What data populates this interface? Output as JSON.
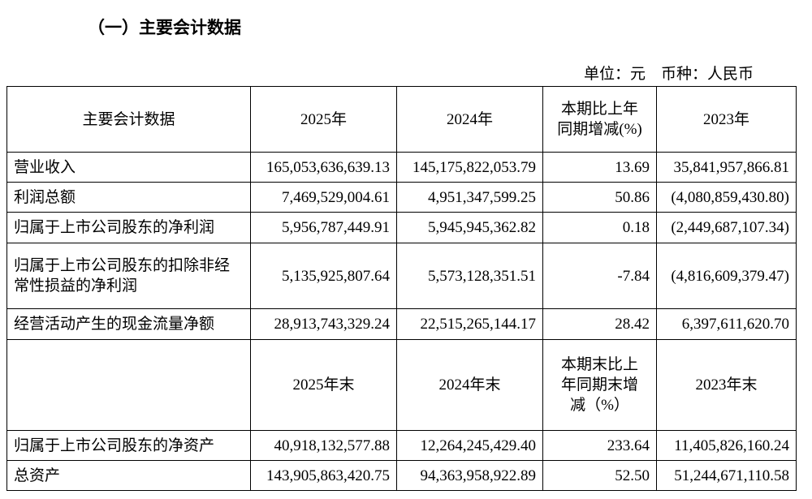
{
  "title": "（一）主要会计数据",
  "unit_note": "单位：元　币种：人民币",
  "table": {
    "header": [
      "主要会计数据",
      "2025年",
      "2024年",
      "本期比上年\n同期增减(%)",
      "2023年"
    ],
    "rows": [
      [
        "营业收入",
        "165,053,636,639.13",
        "145,175,822,053.79",
        "13.69",
        "35,841,957,866.81"
      ],
      [
        "利润总额",
        "7,469,529,004.61",
        "4,951,347,599.25",
        "50.86",
        "(4,080,859,430.80)"
      ],
      [
        "归属于上市公司股东的净利润",
        "5,956,787,449.91",
        "5,945,945,362.82",
        "0.18",
        "(2,449,687,107.34)"
      ],
      [
        "归属于上市公司股东的扣除非经常性损益的净利润",
        "5,135,925,807.64",
        "5,573,128,351.51",
        "-7.84",
        "(4,816,609,379.47)"
      ],
      [
        "经营活动产生的现金流量净额",
        "28,913,743,329.24",
        "22,515,265,144.17",
        "28.42",
        "6,397,611,620.70"
      ]
    ],
    "header2": [
      "2025年末",
      "2024年末",
      "本期末比上\n年同期末增\n减（%）",
      "2023年末"
    ],
    "rows2": [
      [
        "归属于上市公司股东的净资产",
        "40,918,132,577.88",
        "12,264,245,429.40",
        "233.64",
        "11,405,826,160.24"
      ],
      [
        "总资产",
        "143,905,863,420.75",
        "94,363,958,922.89",
        "52.50",
        "51,244,671,110.58"
      ]
    ]
  }
}
